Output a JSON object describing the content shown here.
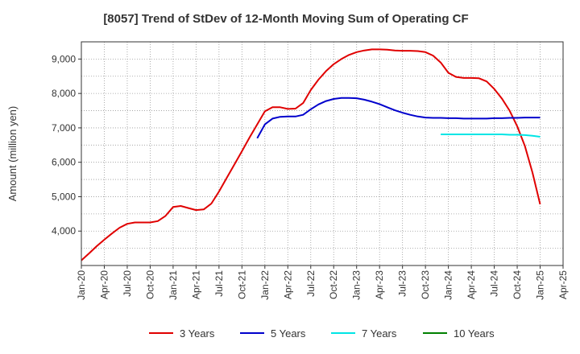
{
  "chart_data": {
    "type": "line",
    "title": "[8057]  Trend of StDev of 12-Month Moving Sum of Operating CF",
    "xlabel": "",
    "ylabel": "Amount (million yen)",
    "x_tick_labels": [
      "Jan-20",
      "Apr-20",
      "Jul-20",
      "Oct-20",
      "Jan-21",
      "Apr-21",
      "Jul-21",
      "Oct-21",
      "Jan-22",
      "Apr-22",
      "Jul-22",
      "Oct-22",
      "Jan-23",
      "Apr-23",
      "Jul-23",
      "Oct-23",
      "Jan-24",
      "Apr-24",
      "Jul-24",
      "Oct-24",
      "Jan-25",
      "Apr-25"
    ],
    "y_ticks": [
      4000,
      5000,
      6000,
      7000,
      8000,
      9000
    ],
    "y_tick_labels": [
      "4,000",
      "5,000",
      "6,000",
      "7,000",
      "8,000",
      "9,000"
    ],
    "ylim": [
      3000,
      9500
    ],
    "xlim": [
      "2020-01",
      "2025-04"
    ],
    "grid": true,
    "legend_position": "bottom",
    "colors": {
      "3y": "#e00000",
      "5y": "#0000cc",
      "7y": "#00e5e5",
      "10y": "#008000",
      "axis": "#333333",
      "grid": "#999999"
    },
    "series": [
      {
        "name": "3 Years",
        "color": "#e00000",
        "x": [
          "2020-01",
          "2020-02",
          "2020-03",
          "2020-04",
          "2020-05",
          "2020-06",
          "2020-07",
          "2020-08",
          "2020-09",
          "2020-10",
          "2020-11",
          "2020-12",
          "2021-01",
          "2021-02",
          "2021-03",
          "2021-04",
          "2021-05",
          "2021-06",
          "2021-07",
          "2021-08",
          "2021-09",
          "2021-10",
          "2021-11",
          "2021-12",
          "2022-01",
          "2022-02",
          "2022-03",
          "2022-04",
          "2022-05",
          "2022-06",
          "2022-07",
          "2022-08",
          "2022-09",
          "2022-10",
          "2022-11",
          "2022-12",
          "2023-01",
          "2023-02",
          "2023-03",
          "2023-04",
          "2023-05",
          "2023-06",
          "2023-07",
          "2023-08",
          "2023-09",
          "2023-10",
          "2023-11",
          "2023-12",
          "2024-01",
          "2024-02",
          "2024-03",
          "2024-04",
          "2024-05",
          "2024-06",
          "2024-07",
          "2024-08",
          "2024-09",
          "2024-10",
          "2024-11",
          "2024-12",
          "2025-01"
        ],
        "values": [
          3150,
          3350,
          3560,
          3750,
          3930,
          4100,
          4210,
          4250,
          4250,
          4250,
          4290,
          4440,
          4700,
          4730,
          4670,
          4610,
          4630,
          4800,
          5150,
          5540,
          5930,
          6320,
          6720,
          7100,
          7480,
          7600,
          7600,
          7550,
          7560,
          7720,
          8100,
          8400,
          8650,
          8850,
          9000,
          9120,
          9200,
          9250,
          9280,
          9280,
          9270,
          9250,
          9240,
          9240,
          9230,
          9200,
          9100,
          8900,
          8600,
          8480,
          8450,
          8450,
          8440,
          8350,
          8130,
          7850,
          7500,
          7050,
          6480,
          5700,
          4780
        ]
      },
      {
        "name": "5 Years",
        "color": "#0000cc",
        "x": [
          "2021-12",
          "2022-01",
          "2022-02",
          "2022-03",
          "2022-04",
          "2022-05",
          "2022-06",
          "2022-07",
          "2022-08",
          "2022-09",
          "2022-10",
          "2022-11",
          "2022-12",
          "2023-01",
          "2023-02",
          "2023-03",
          "2023-04",
          "2023-05",
          "2023-06",
          "2023-07",
          "2023-08",
          "2023-09",
          "2023-10",
          "2023-11",
          "2023-12",
          "2024-01",
          "2024-02",
          "2024-03",
          "2024-04",
          "2024-05",
          "2024-06",
          "2024-07",
          "2024-08",
          "2024-09",
          "2024-10",
          "2024-11",
          "2024-12",
          "2025-01"
        ],
        "values": [
          6700,
          7100,
          7270,
          7320,
          7330,
          7330,
          7380,
          7540,
          7680,
          7780,
          7840,
          7870,
          7870,
          7860,
          7820,
          7760,
          7690,
          7600,
          7510,
          7440,
          7380,
          7330,
          7300,
          7290,
          7290,
          7280,
          7280,
          7270,
          7270,
          7270,
          7270,
          7280,
          7280,
          7290,
          7290,
          7300,
          7300,
          7300
        ]
      },
      {
        "name": "7 Years",
        "color": "#00e5e5",
        "x": [
          "2023-12",
          "2024-01",
          "2024-02",
          "2024-03",
          "2024-04",
          "2024-05",
          "2024-06",
          "2024-07",
          "2024-08",
          "2024-09",
          "2024-10",
          "2024-11",
          "2024-12",
          "2025-01"
        ],
        "values": [
          6810,
          6810,
          6810,
          6810,
          6810,
          6810,
          6810,
          6810,
          6810,
          6800,
          6800,
          6790,
          6770,
          6740
        ]
      },
      {
        "name": "10 Years",
        "color": "#008000",
        "x": [],
        "values": []
      }
    ]
  }
}
